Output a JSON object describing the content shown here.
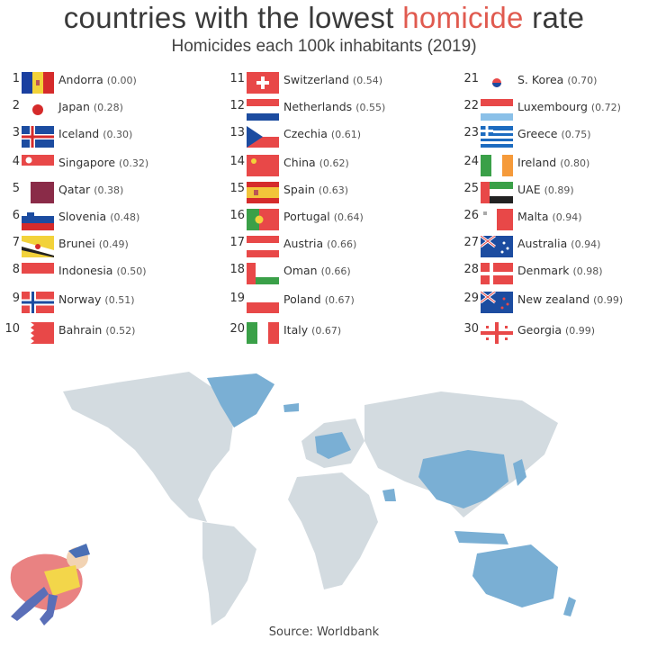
{
  "header": {
    "title_part1": "countries with the lowest ",
    "title_highlight": "homicide",
    "title_part2": " rate",
    "subtitle": "Homicides each 100k inhabitants (2019)"
  },
  "colors": {
    "highlight": "#e05a4f",
    "map_highlight": "#7aafd4",
    "map_land": "#d3dbe0"
  },
  "rankings": [
    {
      "rank": "1",
      "country": "Andorra",
      "value": "(0.00)"
    },
    {
      "rank": "2",
      "country": "Japan",
      "value": "(0.28)"
    },
    {
      "rank": "3",
      "country": "Iceland",
      "value": "(0.30)"
    },
    {
      "rank": "4",
      "country": "Singapore",
      "value": "(0.32)"
    },
    {
      "rank": "5",
      "country": "Qatar",
      "value": "(0.38)"
    },
    {
      "rank": "6",
      "country": "Slovenia",
      "value": "(0.48)"
    },
    {
      "rank": "7",
      "country": "Brunei",
      "value": "(0.49)"
    },
    {
      "rank": "8",
      "country": "Indonesia",
      "value": "(0.50)"
    },
    {
      "rank": "9",
      "country": "Norway",
      "value": "(0.51)"
    },
    {
      "rank": "10",
      "country": "Bahrain",
      "value": "(0.52)"
    },
    {
      "rank": "11",
      "country": "Switzerland",
      "value": "(0.54)"
    },
    {
      "rank": "12",
      "country": "Netherlands",
      "value": "(0.55)"
    },
    {
      "rank": "13",
      "country": "Czechia",
      "value": "(0.61)"
    },
    {
      "rank": "14",
      "country": "China",
      "value": "(0.62)"
    },
    {
      "rank": "15",
      "country": "Spain",
      "value": "(0.63)"
    },
    {
      "rank": "16",
      "country": "Portugal",
      "value": "(0.64)"
    },
    {
      "rank": "17",
      "country": "Austria",
      "value": "(0.66)"
    },
    {
      "rank": "18",
      "country": "Oman",
      "value": "(0.66)"
    },
    {
      "rank": "19",
      "country": "Poland",
      "value": "(0.67)"
    },
    {
      "rank": "20",
      "country": "Italy",
      "value": "(0.67)"
    },
    {
      "rank": "21",
      "country": "S. Korea",
      "value": "(0.70)"
    },
    {
      "rank": "22",
      "country": "Luxembourg",
      "value": "(0.72)"
    },
    {
      "rank": "23",
      "country": "Greece",
      "value": "(0.75)"
    },
    {
      "rank": "24",
      "country": "Ireland",
      "value": "(0.80)"
    },
    {
      "rank": "25",
      "country": "UAE",
      "value": "(0.89)"
    },
    {
      "rank": "26",
      "country": "Malta",
      "value": "(0.94)"
    },
    {
      "rank": "27",
      "country": "Australia",
      "value": "(0.94)"
    },
    {
      "rank": "28",
      "country": "Denmark",
      "value": "(0.98)"
    },
    {
      "rank": "29",
      "country": "New zealand",
      "value": "(0.99)"
    },
    {
      "rank": "30",
      "country": "Georgia",
      "value": "(0.99)"
    }
  ],
  "footer": {
    "source": "Source: Worldbank"
  }
}
